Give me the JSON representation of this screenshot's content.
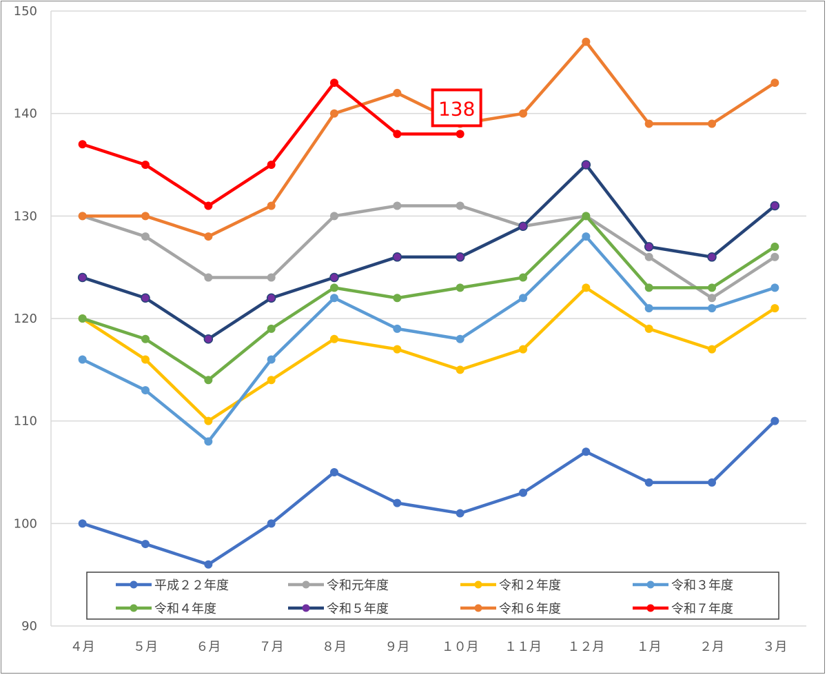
{
  "chart_data": {
    "type": "line",
    "categories": [
      "４月",
      "５月",
      "６月",
      "７月",
      "８月",
      "９月",
      "１０月",
      "１１月",
      "１２月",
      "１月",
      "２月",
      "３月"
    ],
    "ylim": [
      90,
      150
    ],
    "yticks": [
      90,
      100,
      110,
      120,
      130,
      140,
      150
    ],
    "grid": true,
    "legend_position": "bottom-inside",
    "series": [
      {
        "name": "平成２２年度",
        "color": "#4472c4",
        "values": [
          100,
          98,
          96,
          100,
          105,
          102,
          101,
          103,
          107,
          104,
          104,
          110
        ]
      },
      {
        "name": "令和元年度",
        "color": "#a5a5a5",
        "values": [
          130,
          128,
          124,
          124,
          130,
          131,
          131,
          129,
          130,
          126,
          122,
          126
        ]
      },
      {
        "name": "令和２年度",
        "color": "#ffc000",
        "values": [
          120,
          116,
          110,
          114,
          118,
          117,
          115,
          117,
          123,
          119,
          117,
          121
        ]
      },
      {
        "name": "令和３年度",
        "color": "#5b9bd5",
        "values": [
          116,
          113,
          108,
          116,
          122,
          119,
          118,
          122,
          128,
          121,
          121,
          123
        ]
      },
      {
        "name": "令和４年度",
        "color": "#70ad47",
        "values": [
          120,
          118,
          114,
          119,
          123,
          122,
          123,
          124,
          130,
          123,
          123,
          127
        ]
      },
      {
        "name": "令和５年度",
        "color": "#264478",
        "marker_color": "#7030a0",
        "values": [
          124,
          122,
          118,
          122,
          124,
          126,
          126,
          129,
          135,
          127,
          126,
          131
        ]
      },
      {
        "name": "令和６年度",
        "color": "#ed7d31",
        "values": [
          130,
          130,
          128,
          131,
          140,
          142,
          139,
          140,
          147,
          139,
          139,
          143
        ]
      },
      {
        "name": "令和７年度",
        "color": "#ff0000",
        "values": [
          137,
          135,
          131,
          135,
          143,
          138,
          138,
          null,
          null,
          null,
          null,
          null
        ]
      }
    ],
    "annotations": [
      {
        "text": "138",
        "category": "１０月",
        "value": 138,
        "color": "#ff0000"
      }
    ]
  }
}
